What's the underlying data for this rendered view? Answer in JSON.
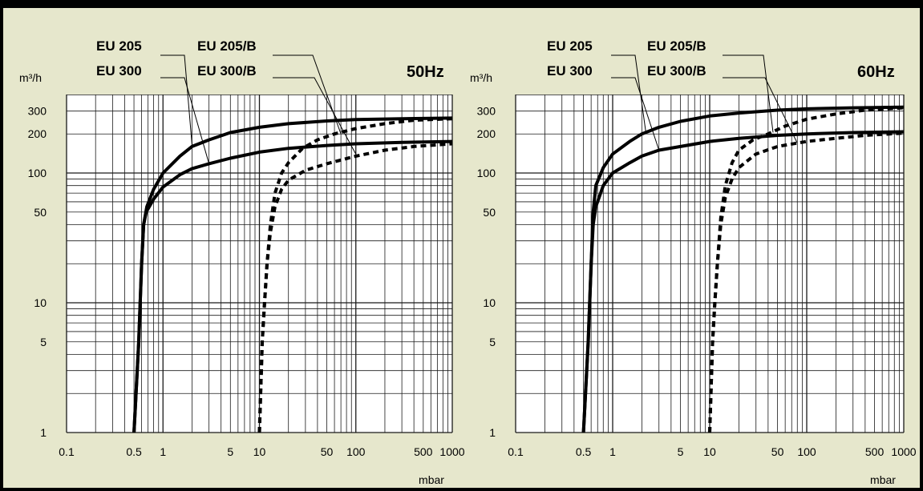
{
  "colors": {
    "background": "#E6E7CC",
    "border": "#000000",
    "curve": "#000000",
    "grid": "#1a1a1a"
  },
  "chart_data": [
    {
      "type": "line",
      "title": "50Hz",
      "ylabel": "m³/h",
      "xlabel": "mbar",
      "x_scale": "log",
      "y_scale": "log",
      "xlim": [
        0.1,
        1000
      ],
      "ylim": [
        1,
        400
      ],
      "x_ticks": [
        "0.1",
        "0.5",
        "1",
        "5",
        "10",
        "50",
        "100",
        "500",
        "1000"
      ],
      "y_ticks": [
        "1",
        "5",
        "10",
        "50",
        "100",
        "200",
        "300"
      ],
      "grid": true,
      "series": [
        {
          "name": "EU 205",
          "style": "solid",
          "points": [
            [
              0.5,
              1
            ],
            [
              0.56,
              5
            ],
            [
              0.6,
              20
            ],
            [
              0.63,
              40
            ],
            [
              0.68,
              55
            ],
            [
              0.8,
              75
            ],
            [
              1,
              100
            ],
            [
              1.5,
              135
            ],
            [
              2,
              160
            ],
            [
              3,
              180
            ],
            [
              5,
              205
            ],
            [
              10,
              225
            ],
            [
              20,
              240
            ],
            [
              50,
              252
            ],
            [
              100,
              258
            ],
            [
              300,
              262
            ],
            [
              1000,
              265
            ]
          ]
        },
        {
          "name": "EU 300",
          "style": "solid",
          "points": [
            [
              0.5,
              1
            ],
            [
              0.56,
              5
            ],
            [
              0.6,
              20
            ],
            [
              0.63,
              40
            ],
            [
              0.67,
              50
            ],
            [
              0.8,
              63
            ],
            [
              1,
              78
            ],
            [
              1.5,
              97
            ],
            [
              2,
              108
            ],
            [
              3,
              118
            ],
            [
              5,
              130
            ],
            [
              10,
              145
            ],
            [
              20,
              155
            ],
            [
              50,
              163
            ],
            [
              100,
              168
            ],
            [
              300,
              172
            ],
            [
              1000,
              175
            ]
          ]
        },
        {
          "name": "EU 205/B",
          "style": "dashed",
          "points": [
            [
              10,
              1
            ],
            [
              10.7,
              5
            ],
            [
              11.3,
              10
            ],
            [
              12,
              20
            ],
            [
              13,
              40
            ],
            [
              14.5,
              70
            ],
            [
              17,
              100
            ],
            [
              20,
              120
            ],
            [
              28,
              155
            ],
            [
              40,
              180
            ],
            [
              60,
              200
            ],
            [
              100,
              220
            ],
            [
              200,
              240
            ],
            [
              400,
              255
            ],
            [
              1000,
              262
            ]
          ]
        },
        {
          "name": "EU 300/B",
          "style": "dashed",
          "points": [
            [
              10,
              1
            ],
            [
              10.7,
              5
            ],
            [
              11.3,
              10
            ],
            [
              12,
              20
            ],
            [
              13,
              35
            ],
            [
              14.5,
              55
            ],
            [
              17,
              75
            ],
            [
              20,
              88
            ],
            [
              30,
              105
            ],
            [
              50,
              118
            ],
            [
              100,
              135
            ],
            [
              200,
              150
            ],
            [
              400,
              160
            ],
            [
              1000,
              168
            ]
          ]
        }
      ]
    },
    {
      "type": "line",
      "title": "60Hz",
      "ylabel": "m³/h",
      "xlabel": "mbar",
      "x_scale": "log",
      "y_scale": "log",
      "xlim": [
        0.1,
        1000
      ],
      "ylim": [
        1,
        400
      ],
      "x_ticks": [
        "0.1",
        "0.5",
        "1",
        "5",
        "10",
        "50",
        "100",
        "500",
        "1000"
      ],
      "y_ticks": [
        "1",
        "5",
        "10",
        "50",
        "100",
        "200",
        "300"
      ],
      "grid": true,
      "series": [
        {
          "name": "EU 205",
          "style": "solid",
          "points": [
            [
              0.5,
              1
            ],
            [
              0.56,
              5
            ],
            [
              0.6,
              20
            ],
            [
              0.63,
              50
            ],
            [
              0.67,
              80
            ],
            [
              0.8,
              110
            ],
            [
              1,
              140
            ],
            [
              1.5,
              175
            ],
            [
              2,
              200
            ],
            [
              3,
              225
            ],
            [
              5,
              250
            ],
            [
              10,
              275
            ],
            [
              20,
              290
            ],
            [
              50,
              305
            ],
            [
              100,
              312
            ],
            [
              300,
              318
            ],
            [
              1000,
              322
            ]
          ]
        },
        {
          "name": "EU 300",
          "style": "solid",
          "points": [
            [
              0.5,
              1
            ],
            [
              0.56,
              5
            ],
            [
              0.6,
              20
            ],
            [
              0.63,
              40
            ],
            [
              0.67,
              55
            ],
            [
              0.8,
              80
            ],
            [
              1,
              100
            ],
            [
              1.5,
              120
            ],
            [
              2,
              135
            ],
            [
              3,
              150
            ],
            [
              5,
              160
            ],
            [
              10,
              175
            ],
            [
              20,
              185
            ],
            [
              50,
              195
            ],
            [
              100,
              200
            ],
            [
              300,
              205
            ],
            [
              1000,
              208
            ]
          ]
        },
        {
          "name": "EU 205/B",
          "style": "dashed",
          "points": [
            [
              10,
              1
            ],
            [
              10.7,
              5
            ],
            [
              11.3,
              10
            ],
            [
              12,
              20
            ],
            [
              13,
              45
            ],
            [
              14.5,
              80
            ],
            [
              17,
              120
            ],
            [
              20,
              150
            ],
            [
              28,
              180
            ],
            [
              40,
              200
            ],
            [
              60,
              230
            ],
            [
              100,
              260
            ],
            [
              200,
              285
            ],
            [
              400,
              305
            ],
            [
              1000,
              318
            ]
          ]
        },
        {
          "name": "EU 300/B",
          "style": "dashed",
          "points": [
            [
              10,
              1
            ],
            [
              10.7,
              5
            ],
            [
              11.3,
              10
            ],
            [
              12,
              20
            ],
            [
              13,
              40
            ],
            [
              14.5,
              65
            ],
            [
              17,
              90
            ],
            [
              20,
              110
            ],
            [
              30,
              140
            ],
            [
              50,
              160
            ],
            [
              100,
              175
            ],
            [
              200,
              185
            ],
            [
              400,
              195
            ],
            [
              1000,
              203
            ]
          ]
        }
      ]
    }
  ]
}
